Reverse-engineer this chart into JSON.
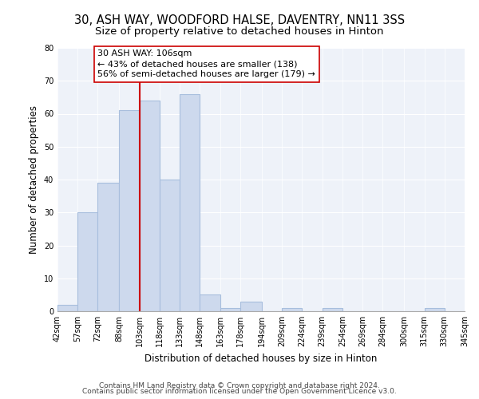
{
  "title_line1": "30, ASH WAY, WOODFORD HALSE, DAVENTRY, NN11 3SS",
  "title_line2": "Size of property relative to detached houses in Hinton",
  "xlabel": "Distribution of detached houses by size in Hinton",
  "ylabel": "Number of detached properties",
  "bar_color": "#cdd9ed",
  "bar_edge_color": "#a8bedd",
  "vline_color": "#cc0000",
  "vline_x": 103,
  "annotation_line1": "30 ASH WAY: 106sqm",
  "annotation_line2": "← 43% of detached houses are smaller (138)",
  "annotation_line3": "56% of semi-detached houses are larger (179) →",
  "bins": [
    42,
    57,
    72,
    88,
    103,
    118,
    133,
    148,
    163,
    178,
    194,
    209,
    224,
    239,
    254,
    269,
    284,
    300,
    315,
    330,
    345
  ],
  "counts": [
    2,
    30,
    39,
    61,
    64,
    40,
    66,
    5,
    1,
    3,
    0,
    1,
    0,
    1,
    0,
    0,
    0,
    0,
    1,
    0
  ],
  "ylim": [
    0,
    80
  ],
  "yticks": [
    0,
    10,
    20,
    30,
    40,
    50,
    60,
    70,
    80
  ],
  "tick_labels": [
    "42sqm",
    "57sqm",
    "72sqm",
    "88sqm",
    "103sqm",
    "118sqm",
    "133sqm",
    "148sqm",
    "163sqm",
    "178sqm",
    "194sqm",
    "209sqm",
    "224sqm",
    "239sqm",
    "254sqm",
    "269sqm",
    "284sqm",
    "300sqm",
    "315sqm",
    "330sqm",
    "345sqm"
  ],
  "footer1": "Contains HM Land Registry data © Crown copyright and database right 2024.",
  "footer2": "Contains public sector information licensed under the Open Government Licence v3.0.",
  "background_color": "#eef2f9",
  "grid_color": "#ffffff",
  "title_fontsize": 10.5,
  "subtitle_fontsize": 9.5,
  "axis_label_fontsize": 8.5,
  "tick_fontsize": 7,
  "annotation_fontsize": 8,
  "footer_fontsize": 6.5
}
